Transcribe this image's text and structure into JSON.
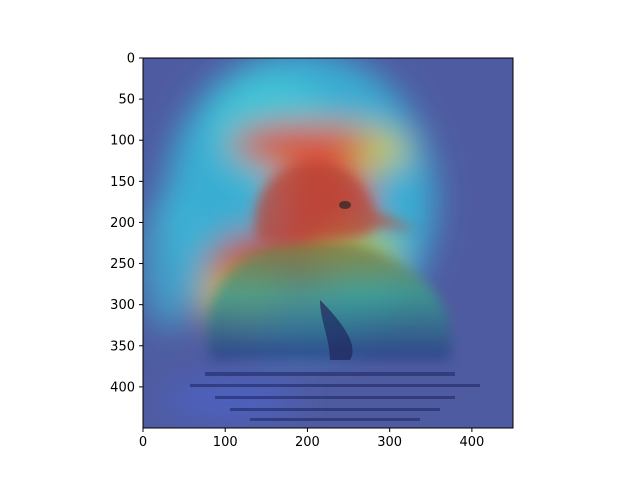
{
  "figure": {
    "description_type": "image with heatmap overlay",
    "colormap": "jet"
  },
  "chart_data": {
    "type": "heatmap",
    "xlim": [
      0,
      450
    ],
    "ylim": [
      450,
      0
    ],
    "x_ticks": [
      "0",
      "100",
      "200",
      "300",
      "400"
    ],
    "y_ticks": [
      "0",
      "50",
      "100",
      "150",
      "200",
      "250",
      "300",
      "350",
      "400"
    ],
    "grid": false,
    "colors": {
      "frame": "#000000",
      "background_tint": "#55609e"
    }
  }
}
